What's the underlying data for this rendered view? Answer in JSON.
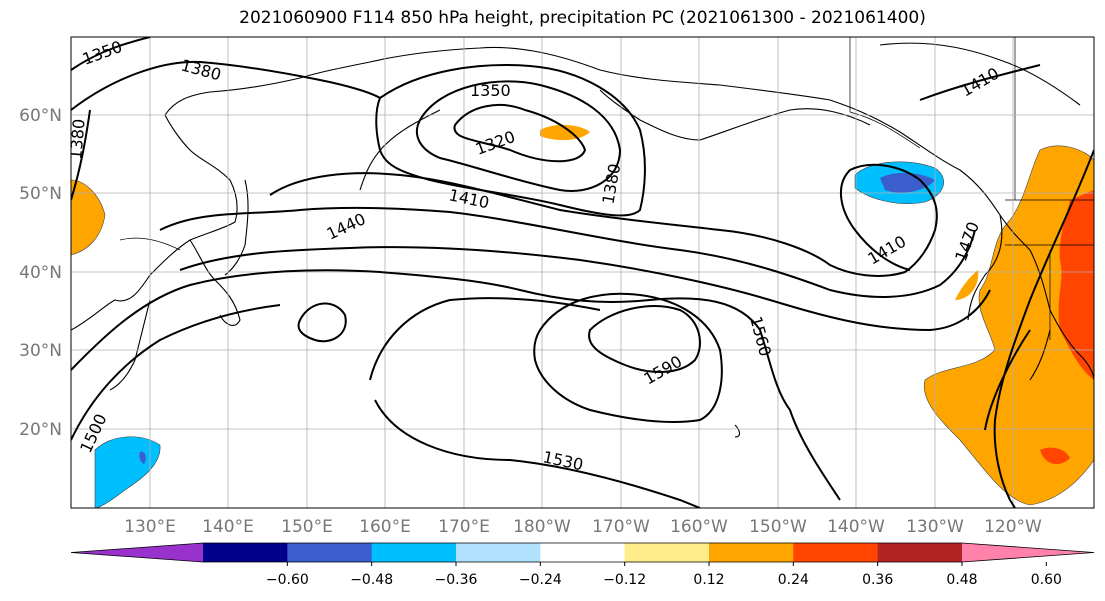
{
  "title": "2021060900 F114 850 hPa height, precipitation PC (2021061300 - 2021061400)",
  "lat_labels": [
    "60°N",
    "50°N",
    "40°N",
    "30°N",
    "20°N"
  ],
  "lon_labels": [
    "130°E",
    "140°E",
    "150°E",
    "160°E",
    "170°E",
    "180°W",
    "170°W",
    "160°W",
    "150°W",
    "140°W",
    "130°W",
    "120°W"
  ],
  "colorbar": {
    "labels": [
      "−0.60",
      "−0.48",
      "−0.36",
      "−0.24",
      "−0.12",
      "0.12",
      "0.24",
      "0.36",
      "0.48",
      "0.60"
    ],
    "colors": [
      "#9932CC",
      "#00008B",
      "#3A5FCD",
      "#00BFFF",
      "#B0E2FF",
      "#FFFFFF",
      "#FFEC8B",
      "#FFA500",
      "#FF4500",
      "#B22222",
      "#FF82AB"
    ]
  },
  "contour_labels": [
    "1350",
    "1380",
    "1380",
    "1350",
    "1320",
    "1380",
    "1410",
    "1440",
    "1410",
    "1470",
    "1410",
    "1500",
    "1530",
    "1590",
    "1560"
  ]
}
